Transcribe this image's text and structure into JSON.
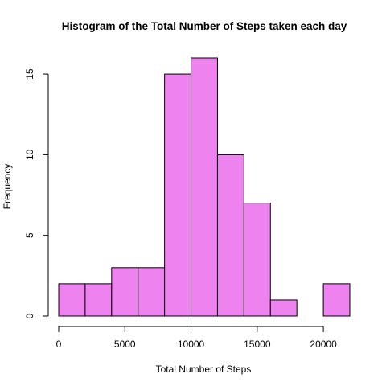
{
  "chart_data": {
    "type": "bar",
    "title": "Histogram of the Total Number of Steps taken each day",
    "xlabel": "Total Number of Steps",
    "ylabel": "Frequency",
    "bin_edges": [
      0,
      2000,
      4000,
      6000,
      8000,
      10000,
      12000,
      14000,
      16000,
      18000,
      20000,
      22000
    ],
    "values": [
      2,
      2,
      3,
      3,
      15,
      16,
      10,
      7,
      1,
      0,
      2
    ],
    "xlim": [
      0,
      22000
    ],
    "ylim": [
      0,
      16
    ],
    "x_ticks": [
      0,
      5000,
      10000,
      15000,
      20000
    ],
    "x_tick_labels": [
      "0",
      "5000",
      "10000",
      "15000",
      "20000"
    ],
    "y_ticks": [
      0,
      5,
      10,
      15
    ],
    "y_tick_labels": [
      "0",
      "5",
      "10",
      "15"
    ],
    "bar_color": "#EE82EE",
    "grid": false,
    "legend": "none"
  }
}
